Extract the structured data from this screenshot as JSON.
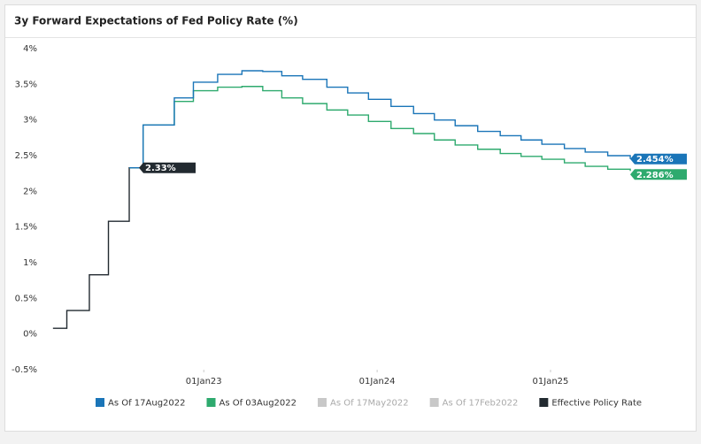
{
  "chart_data": {
    "type": "line",
    "step": true,
    "title": "3y Forward Expectations of Fed Policy Rate (%)",
    "xlim": [
      2022.09,
      2025.48
    ],
    "xticks": [
      {
        "value": 2023,
        "label": "01Jan23"
      },
      {
        "value": 2024,
        "label": "01Jan24"
      },
      {
        "value": 2025,
        "label": "01Jan25"
      }
    ],
    "ylim": [
      -0.5,
      4
    ],
    "yticks": [
      {
        "value": -0.5,
        "label": "-0.5%"
      },
      {
        "value": 0,
        "label": "0%"
      },
      {
        "value": 0.5,
        "label": "0.5%"
      },
      {
        "value": 1,
        "label": "1%"
      },
      {
        "value": 1.5,
        "label": "1.5%"
      },
      {
        "value": 2,
        "label": "2%"
      },
      {
        "value": 2.5,
        "label": "2.5%"
      },
      {
        "value": 3,
        "label": "3%"
      },
      {
        "value": 3.5,
        "label": "3.5%"
      },
      {
        "value": 4,
        "label": "4%"
      }
    ],
    "grid": false,
    "series": [
      {
        "name": "As Of 17Aug2022",
        "color": "#1a75b8",
        "x": [
          2022.57,
          2022.65,
          2022.83,
          2022.94,
          2023.08,
          2023.22,
          2023.34,
          2023.45,
          2023.57,
          2023.71,
          2023.83,
          2023.95,
          2024.08,
          2024.21,
          2024.33,
          2024.45,
          2024.58,
          2024.71,
          2024.83,
          2024.95,
          2025.08,
          2025.2,
          2025.33,
          2025.46
        ],
        "values": [
          2.33,
          2.93,
          3.31,
          3.53,
          3.64,
          3.69,
          3.68,
          3.62,
          3.57,
          3.46,
          3.38,
          3.29,
          3.19,
          3.09,
          3.0,
          2.92,
          2.84,
          2.78,
          2.72,
          2.66,
          2.6,
          2.55,
          2.5,
          2.454
        ],
        "last_label": "2.454%"
      },
      {
        "name": "As Of 03Aug2022",
        "color": "#2eaa6e",
        "x": [
          2022.57,
          2022.65,
          2022.83,
          2022.94,
          2023.08,
          2023.22,
          2023.34,
          2023.45,
          2023.57,
          2023.71,
          2023.83,
          2023.95,
          2024.08,
          2024.21,
          2024.33,
          2024.45,
          2024.58,
          2024.71,
          2024.83,
          2024.95,
          2025.08,
          2025.2,
          2025.33,
          2025.46
        ],
        "values": [
          2.33,
          2.93,
          3.26,
          3.41,
          3.46,
          3.47,
          3.41,
          3.31,
          3.23,
          3.14,
          3.07,
          2.98,
          2.88,
          2.81,
          2.72,
          2.65,
          2.59,
          2.53,
          2.49,
          2.45,
          2.4,
          2.35,
          2.31,
          2.286
        ],
        "last_label": "2.286%"
      },
      {
        "name": "Effective Policy Rate",
        "color": "#222a30",
        "x": [
          2022.13,
          2022.21,
          2022.34,
          2022.45,
          2022.57,
          2022.65
        ],
        "values": [
          0.08,
          0.33,
          0.83,
          1.58,
          2.33,
          2.33
        ],
        "last_label": "2.33%"
      }
    ],
    "inactive_series": [
      {
        "name": "As Of 17May2022",
        "color": "#c8c8c8"
      },
      {
        "name": "As Of 17Feb2022",
        "color": "#c8c8c8"
      }
    ]
  }
}
